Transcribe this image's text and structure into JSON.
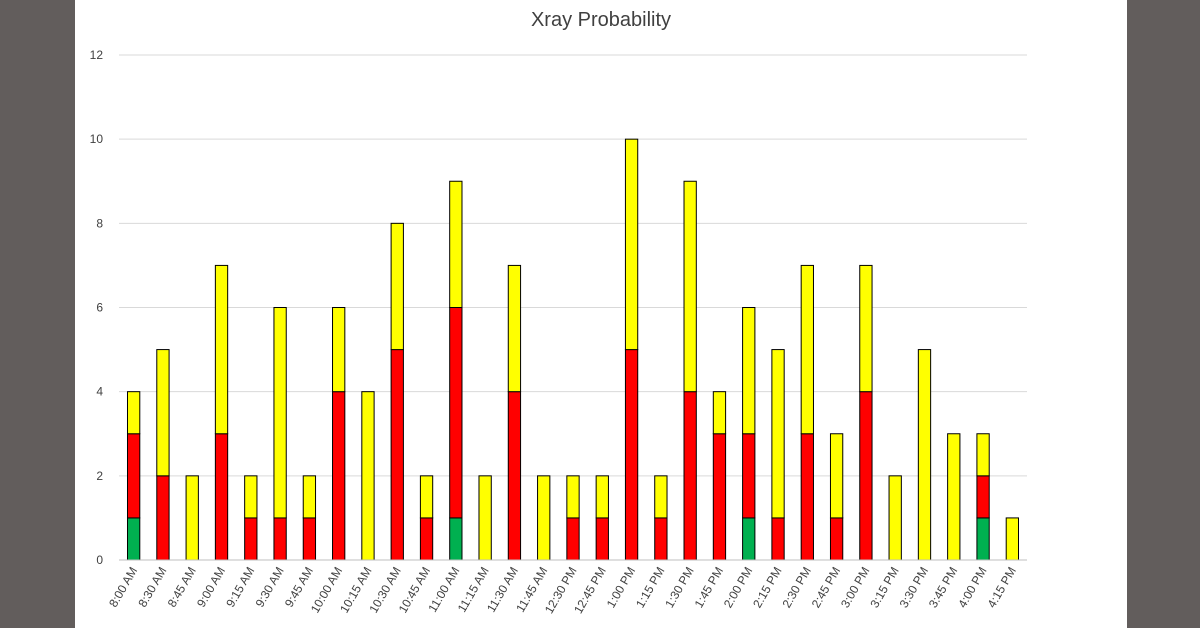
{
  "chart_data": {
    "type": "bar",
    "stacked": true,
    "title": "Xray Probability",
    "xlabel": "",
    "ylabel": "",
    "ylim": [
      0,
      12
    ],
    "yticks": [
      0,
      2,
      4,
      6,
      8,
      10,
      12
    ],
    "grid": true,
    "legend": "none",
    "categories": [
      "8:00 AM",
      "8:30 AM",
      "8:45 AM",
      "9:00 AM",
      "9:15 AM",
      "9:30 AM",
      "9:45 AM",
      "10:00 AM",
      "10:15 AM",
      "10:30 AM",
      "10:45 AM",
      "11:00 AM",
      "11:15 AM",
      "11:30 AM",
      "11:45 AM",
      "12:30 PM",
      "12:45 PM",
      "1:00 PM",
      "1:15 PM",
      "1:30 PM",
      "1:45 PM",
      "2:00 PM",
      "2:15 PM",
      "2:30 PM",
      "2:45 PM",
      "3:00 PM",
      "3:15 PM",
      "3:30 PM",
      "3:45 PM",
      "4:00 PM",
      "4:15 PM"
    ],
    "series": [
      {
        "color": "#00b050",
        "values": [
          1,
          0,
          0,
          0,
          0,
          0,
          0,
          0,
          0,
          0,
          0,
          1,
          0,
          0,
          0,
          0,
          0,
          0,
          0,
          0,
          0,
          1,
          0,
          0,
          0,
          0,
          0,
          0,
          0,
          1,
          0
        ]
      },
      {
        "color": "#ff0000",
        "values": [
          2,
          2,
          0,
          3,
          1,
          1,
          1,
          4,
          0,
          5,
          1,
          5,
          0,
          4,
          0,
          1,
          1,
          5,
          1,
          4,
          3,
          2,
          1,
          3,
          1,
          4,
          0,
          0,
          0,
          1,
          0
        ]
      },
      {
        "color": "#ffff00",
        "values": [
          1,
          3,
          2,
          4,
          1,
          5,
          1,
          2,
          4,
          3,
          1,
          3,
          2,
          3,
          2,
          1,
          1,
          5,
          1,
          5,
          1,
          3,
          4,
          4,
          2,
          3,
          2,
          5,
          3,
          1,
          1
        ]
      }
    ]
  }
}
